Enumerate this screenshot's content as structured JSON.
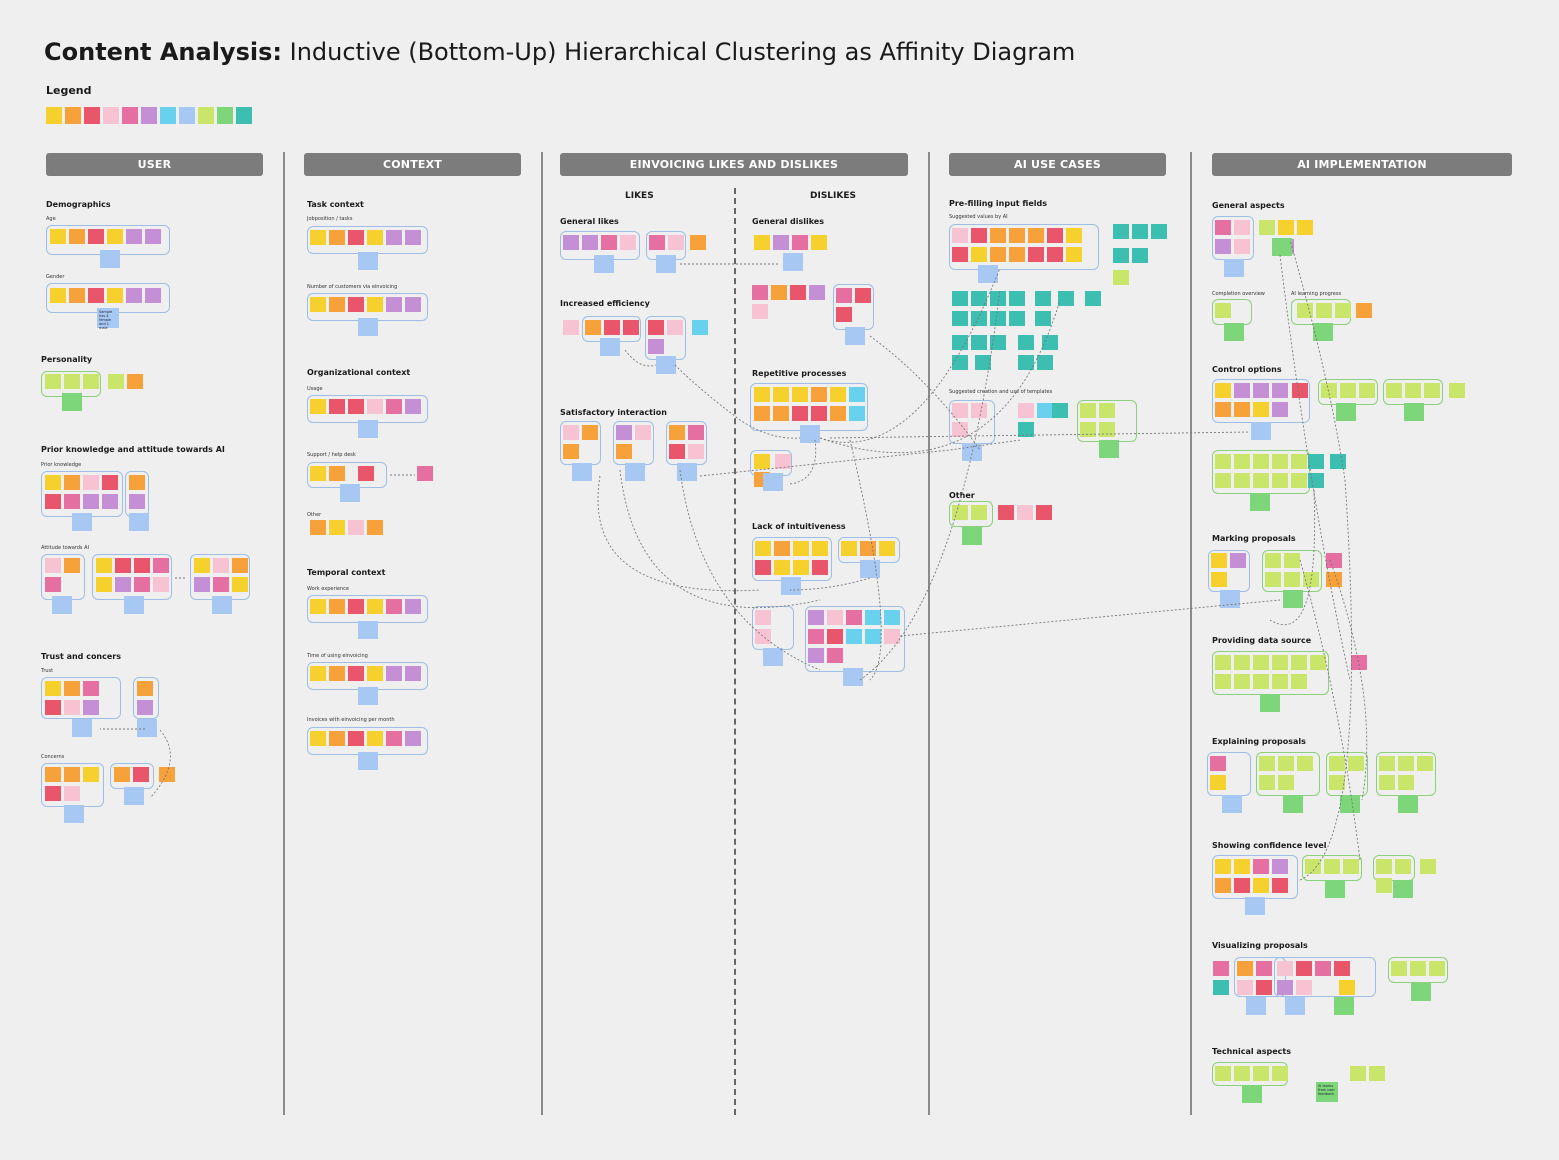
{
  "title": {
    "bold": "Content Analysis:",
    "rest": " Inductive (Bottom-Up) Hierarchical Clustering as Affinity Diagram"
  },
  "legend": {
    "label": "Legend",
    "swatches": [
      "#f6d12e",
      "#f7a13a",
      "#e9556a",
      "#f7c3d2",
      "#e46fa0",
      "#c58fd6",
      "#67d1ee",
      "#a7c8f2",
      "#c9e66a",
      "#7ed67a",
      "#3cbfb0"
    ]
  },
  "columns": {
    "user": {
      "header": "USER",
      "sections": {
        "demographics": "Demographics",
        "age": "Age",
        "gender": "Gender",
        "gender_note": "Sample has 4 female and 1 male",
        "personality": "Personality",
        "prior": "Prior knowledge and attitude towards AI",
        "prior_knowledge": "Prior knowledge",
        "attitude": "Attitude towards AI",
        "trust_concerns": "Trust and concers",
        "trust": "Trust",
        "concerns": "Concerns"
      }
    },
    "context": {
      "header": "CONTEXT",
      "sections": {
        "task": "Task context",
        "jobposition": "Jobposition / tasks",
        "customers": "Number of customers via einvoicing",
        "org": "Organizational context",
        "usage": "Usage",
        "support": "Support / help desk",
        "other": "Other",
        "temporal": "Temporal context",
        "work": "Work experience",
        "time": "Time of using einvoicing",
        "invoices": "Invoices with einvoicing per month"
      }
    },
    "likes": {
      "header": "EINVOICING LIKES AND DISLIKES",
      "likes": "LIKES",
      "dislikes": "DISLIKES",
      "sections": {
        "general_likes": "General likes",
        "efficiency": "Increased efficiency",
        "satisfactory": "Satisfactory interaction",
        "general_dislikes": "General dislikes",
        "repetitive": "Repetitive processes",
        "intuitive": "Lack of intuitiveness"
      }
    },
    "usecases": {
      "header": "AI USE CASES",
      "sections": {
        "prefill": "Pre-filling input fields",
        "suggested": "Suggested values by AI",
        "templates": "Suggested creation and use of templates",
        "other": "Other"
      }
    },
    "impl": {
      "header": "AI IMPLEMENTATION",
      "sections": {
        "general": "General aspects",
        "completion": "Completion overview",
        "learning": "AI learning progress",
        "control": "Control options",
        "marking": "Marking proposals",
        "datasource": "Providing data source",
        "explaining": "Explaining proposals",
        "confidence": "Showing confidence level",
        "visualizing": "Visualizing proposals",
        "technical": "Technical aspects",
        "tech_note": "AI learns from user feedback"
      }
    }
  }
}
